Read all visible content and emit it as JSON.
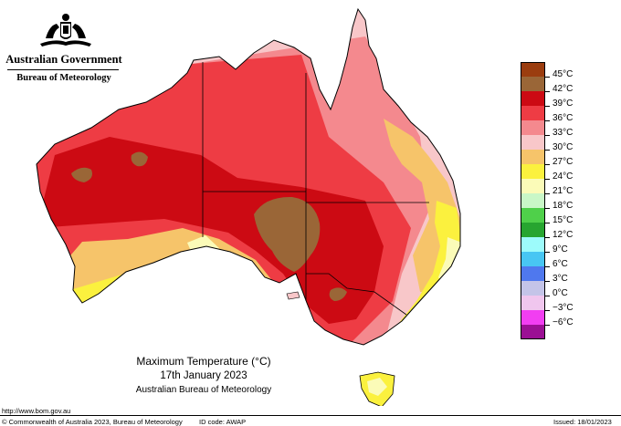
{
  "header": {
    "government": "Australian Government",
    "bureau": "Bureau of Meteorology"
  },
  "map": {
    "title": "Maximum Temperature (°C)",
    "date": "17th January 2023",
    "source": "Australian Bureau of Meteorology"
  },
  "legend": {
    "items": [
      {
        "label": "45°C",
        "color": "#9b3d0f"
      },
      {
        "label": "42°C",
        "color": "#9a6637"
      },
      {
        "label": "39°C",
        "color": "#cc0a13"
      },
      {
        "label": "36°C",
        "color": "#ee3c44"
      },
      {
        "label": "33°C",
        "color": "#f4898e"
      },
      {
        "label": "30°C",
        "color": "#f8c7c9"
      },
      {
        "label": "27°C",
        "color": "#f6c46a"
      },
      {
        "label": "24°C",
        "color": "#fbf13e"
      },
      {
        "label": "21°C",
        "color": "#fbfbb8"
      },
      {
        "label": "18°C",
        "color": "#c9f7c7"
      },
      {
        "label": "15°C",
        "color": "#4fd04a"
      },
      {
        "label": "12°C",
        "color": "#27a530"
      },
      {
        "label": "9°C",
        "color": "#9dfbfb"
      },
      {
        "label": "6°C",
        "color": "#48c6f3"
      },
      {
        "label": "3°C",
        "color": "#4f78ee"
      },
      {
        "label": "0°C",
        "color": "#c4c4e8"
      },
      {
        "label": "−3°C",
        "color": "#f0c6ee"
      },
      {
        "label": "−6°C",
        "color": "#f23ef2"
      },
      {
        "label": "",
        "color": "#9b1094"
      }
    ]
  },
  "footer": {
    "url": "http://www.bom.gov.au",
    "copyright": "© Commonwealth of Australia 2023, Bureau of Meteorology",
    "id_code": "ID code: AWAP",
    "issued": "Issued: 18/01/2023"
  }
}
